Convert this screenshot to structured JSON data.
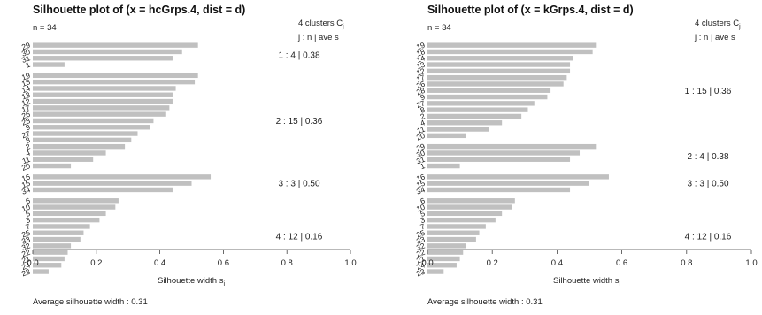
{
  "chart_data": [
    {
      "type": "bar",
      "orientation": "horizontal",
      "title": "Silhouette plot of (x = hcGrps.4, dist = d)",
      "n_label": "n = 34",
      "header_clusters": "4  clusters  C",
      "header_clusters_sub": "j",
      "header_row2": "j :  n  | ave  s",
      "xlabel": "Silhouette width  s",
      "xlabel_sub": "i",
      "xlim": [
        0,
        1
      ],
      "xticks": [
        "0.0",
        "0.2",
        "0.4",
        "0.6",
        "0.8",
        "1.0"
      ],
      "avg_text": "Average silhouette width :  0.31",
      "bar_color": "#c0c0c0",
      "clusters": [
        {
          "label": "1 :   4  |  0.38",
          "items": [
            "29",
            "30",
            "31",
            "1"
          ],
          "values": [
            0.52,
            0.47,
            0.44,
            0.1
          ]
        },
        {
          "label": "2 :   15  |  0.36",
          "items": [
            "19",
            "18",
            "14",
            "13",
            "12",
            "17",
            "26",
            "28",
            "9",
            "27",
            "8",
            "2",
            "4",
            "11",
            "20"
          ],
          "values": [
            0.52,
            0.51,
            0.45,
            0.44,
            0.44,
            0.43,
            0.42,
            0.38,
            0.37,
            0.33,
            0.31,
            0.29,
            0.23,
            0.19,
            0.12
          ]
        },
        {
          "label": "3 :   3  |  0.50",
          "items": [
            "16",
            "15",
            "34"
          ],
          "values": [
            0.56,
            0.5,
            0.44
          ]
        },
        {
          "label": "4 :   12  |  0.16",
          "items": [
            "6",
            "10",
            "5",
            "3",
            "7",
            "25",
            "33",
            "32",
            "22",
            "21",
            "24",
            "23"
          ],
          "values": [
            0.27,
            0.26,
            0.23,
            0.21,
            0.18,
            0.16,
            0.15,
            0.12,
            0.11,
            0.1,
            0.09,
            0.05
          ]
        }
      ]
    },
    {
      "type": "bar",
      "orientation": "horizontal",
      "title": "Silhouette plot of (x = kGrps.4, dist = d)",
      "n_label": "n = 34",
      "header_clusters": "4  clusters  C",
      "header_clusters_sub": "j",
      "header_row2": "j :  n  | ave  s",
      "xlabel": "Silhouette width  s",
      "xlabel_sub": "i",
      "xlim": [
        0,
        1
      ],
      "xticks": [
        "0.0",
        "0.2",
        "0.4",
        "0.6",
        "0.8",
        "1.0"
      ],
      "avg_text": "Average silhouette width :  0.31",
      "bar_color": "#c0c0c0",
      "clusters": [
        {
          "label": "1 :   15  |  0.36",
          "items": [
            "19",
            "18",
            "14",
            "13",
            "12",
            "17",
            "26",
            "28",
            "9",
            "27",
            "8",
            "2",
            "4",
            "11",
            "20"
          ],
          "values": [
            0.52,
            0.51,
            0.45,
            0.44,
            0.44,
            0.43,
            0.42,
            0.38,
            0.37,
            0.33,
            0.31,
            0.29,
            0.23,
            0.19,
            0.12
          ]
        },
        {
          "label": "2 :   4  |  0.38",
          "items": [
            "29",
            "30",
            "31",
            "1"
          ],
          "values": [
            0.52,
            0.47,
            0.44,
            0.1
          ]
        },
        {
          "label": "3 :   3  |  0.50",
          "items": [
            "16",
            "15",
            "34"
          ],
          "values": [
            0.56,
            0.5,
            0.44
          ]
        },
        {
          "label": "4 :   12  |  0.16",
          "items": [
            "6",
            "10",
            "5",
            "3",
            "7",
            "25",
            "33",
            "32",
            "22",
            "21",
            "24",
            "23"
          ],
          "values": [
            0.27,
            0.26,
            0.23,
            0.21,
            0.18,
            0.16,
            0.15,
            0.12,
            0.11,
            0.1,
            0.09,
            0.05
          ]
        }
      ]
    }
  ]
}
